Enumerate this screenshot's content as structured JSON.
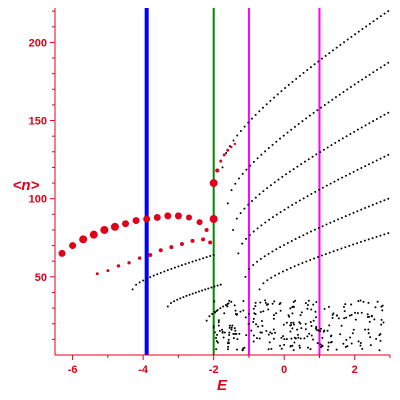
{
  "chart_data": {
    "type": "scatter",
    "xlabel": "E",
    "ylabel": "<n>",
    "xlim": [
      -6.5,
      3.0
    ],
    "ylim": [
      0,
      222
    ],
    "x_ticks": [
      "-6",
      "-4",
      "-2",
      "0",
      "2"
    ],
    "x_tick_values": [
      -6,
      -4,
      -2,
      0,
      2
    ],
    "y_ticks": [
      "50",
      "100",
      "150",
      "200"
    ],
    "y_tick_values": [
      50,
      100,
      150,
      200
    ],
    "grid": false,
    "colors": {
      "axis": "#e0001a",
      "highlight_points": "#e0001a",
      "levels": "#000000"
    },
    "vertical_lines": [
      {
        "x": -3.9,
        "color": "#0000ff",
        "width": "thick"
      },
      {
        "x": -2.0,
        "color": "#008800",
        "width": "normal"
      },
      {
        "x": -1.0,
        "color": "#ff00ff",
        "width": "normal"
      },
      {
        "x": 1.0,
        "color": "#ff00ff",
        "width": "normal"
      }
    ],
    "black_curves": [
      {
        "x_start": -1.75,
        "x_end": 2.95,
        "y_start": 120,
        "y_end": 220,
        "points": 46
      },
      {
        "x_start": -1.6,
        "x_end": 2.95,
        "y_start": 97,
        "y_end": 187,
        "points": 44
      },
      {
        "x_start": -1.45,
        "x_end": 2.95,
        "y_start": 80,
        "y_end": 155,
        "points": 42
      },
      {
        "x_start": -1.3,
        "x_end": 2.95,
        "y_start": 65,
        "y_end": 128,
        "points": 40
      },
      {
        "x_start": -1.1,
        "x_end": 2.95,
        "y_start": 50,
        "y_end": 100,
        "points": 38
      },
      {
        "x_start": -0.7,
        "x_end": 2.95,
        "y_start": 42,
        "y_end": 78,
        "points": 34
      },
      {
        "x_start": -4.3,
        "x_end": -2.0,
        "y_start": 42,
        "y_end": 64,
        "points": 24
      },
      {
        "x_start": -3.3,
        "x_end": -1.8,
        "y_start": 31,
        "y_end": 45,
        "points": 18
      },
      {
        "x_start": -2.2,
        "x_end": -1.5,
        "y_start": 22,
        "y_end": 34,
        "points": 10
      }
    ],
    "red_series": [
      {
        "name": "",
        "x": [
          -6.3,
          -6.0,
          -5.7,
          -5.4,
          -5.1,
          -4.8,
          -4.5,
          -4.2,
          -3.9,
          -3.6,
          -3.3,
          -3.0,
          -2.7,
          -2.4,
          -2.2,
          -2.0
        ],
        "y": [
          65,
          70,
          74,
          77,
          80,
          82,
          84,
          86,
          87,
          88,
          89,
          89,
          88,
          85,
          80,
          87
        ],
        "size": [
          3.5,
          3.5,
          4,
          4,
          4,
          4,
          3.5,
          3.5,
          3.5,
          3.5,
          3.5,
          3.5,
          3,
          3,
          2,
          4
        ]
      },
      {
        "name": "",
        "x": [
          -5.3,
          -5.0,
          -4.7,
          -4.4,
          -4.1,
          -3.8,
          -3.5,
          -3.2,
          -2.9,
          -2.6,
          -2.3,
          -2.1
        ],
        "y": [
          52,
          54,
          57,
          59,
          62,
          64,
          67,
          69,
          71,
          73,
          74,
          72
        ],
        "size": [
          1.5,
          1.5,
          1.7,
          1.7,
          1.7,
          2,
          2,
          2,
          2,
          2,
          2,
          2
        ]
      },
      {
        "name": "",
        "x": [
          -2.0,
          -1.9,
          -1.8,
          -1.7,
          -1.6,
          -1.5,
          -1.4
        ],
        "y": [
          110,
          118,
          124,
          128,
          131,
          133,
          135
        ],
        "size": [
          4,
          2,
          1.5,
          1.5,
          1.5,
          1.2,
          1.2
        ]
      }
    ]
  }
}
